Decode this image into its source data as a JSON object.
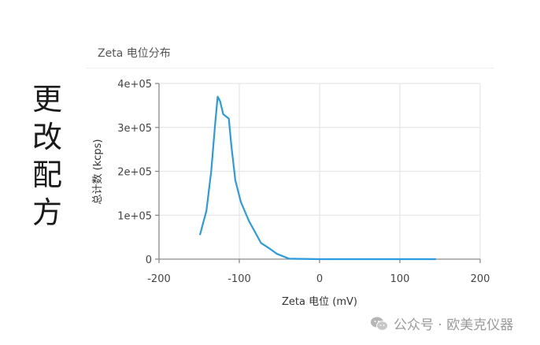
{
  "side_label": [
    "更",
    "改",
    "配",
    "方"
  ],
  "panel": {
    "title": "Zeta 电位分布"
  },
  "watermark": {
    "icon": "wechat-icon",
    "text": "公众号 · 欧美克仪器"
  },
  "colors": {
    "line": "#2b9be0",
    "grid": "#e6e6e6",
    "axis": "#8a8a8a"
  },
  "chart_data": {
    "type": "line",
    "title": "Zeta 电位分布",
    "xlabel": "Zeta 电位 (mV)",
    "ylabel": "总计数 (kcps)",
    "xlim": [
      -200,
      200
    ],
    "ylim": [
      0,
      400000
    ],
    "xticks": [
      -200,
      -100,
      0,
      100,
      200
    ],
    "xtick_labels": [
      "-200",
      "-100",
      "0",
      "100",
      "200"
    ],
    "yticks": [
      0,
      100000,
      200000,
      300000,
      400000
    ],
    "ytick_labels": [
      "0",
      "1e+05",
      "2e+05",
      "3e+05",
      "4e+05"
    ],
    "grid": true,
    "legend": null,
    "series": [
      {
        "name": "Zeta potential distribution",
        "x": [
          -149,
          -141,
          -135,
          -130,
          -127,
          -124,
          -120,
          -113,
          -110,
          -105,
          -98,
          -88,
          -73,
          -63,
          -53,
          -38,
          0,
          50,
          100,
          145
        ],
        "y": [
          55000,
          110000,
          200000,
          310000,
          370000,
          360000,
          330000,
          320000,
          260000,
          180000,
          130000,
          87000,
          37000,
          25000,
          12000,
          1000,
          0,
          0,
          0,
          0
        ]
      }
    ]
  }
}
